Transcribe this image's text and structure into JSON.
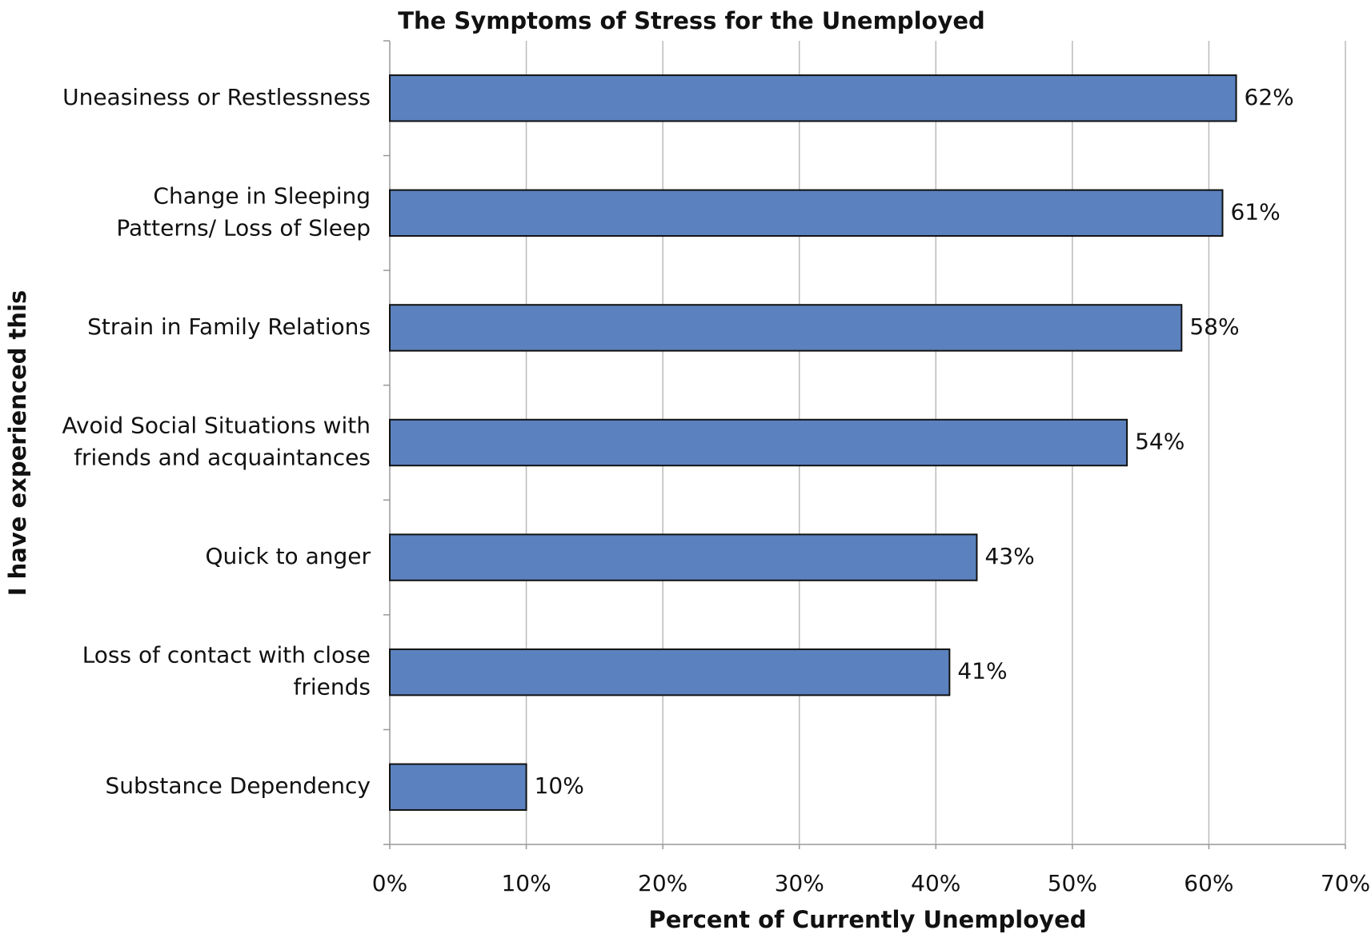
{
  "chart_data": {
    "type": "hbar",
    "title": "The Symptoms of Stress for the Unemployed",
    "x_label": "Percent of Currently Unemployed",
    "y_label": "I have experienced this",
    "categories": [
      [
        "Uneasiness or Restlessness"
      ],
      [
        "Change in Sleeping",
        "Patterns/ Loss of Sleep"
      ],
      [
        "Strain in Family Relations"
      ],
      [
        "Avoid Social Situations with",
        "friends and acquaintances"
      ],
      [
        "Quick to anger"
      ],
      [
        "Loss of contact with close",
        "friends"
      ],
      [
        "Substance Dependency"
      ]
    ],
    "values": [
      62,
      61,
      58,
      54,
      43,
      41,
      10
    ],
    "value_labels": [
      "62%",
      "61%",
      "58%",
      "54%",
      "43%",
      "41%",
      "10%"
    ],
    "color": "#5b82be",
    "xlim": [
      0,
      70
    ],
    "xticks": [
      {
        "value": 0,
        "label": "0%"
      },
      {
        "value": 10,
        "label": "10%"
      },
      {
        "value": 20,
        "label": "20%"
      },
      {
        "value": 30,
        "label": "30%"
      },
      {
        "value": 40,
        "label": "40%"
      },
      {
        "value": 50,
        "label": "50%"
      },
      {
        "value": 60,
        "label": "60%"
      },
      {
        "value": 70,
        "label": "70%"
      }
    ],
    "grid": true
  }
}
